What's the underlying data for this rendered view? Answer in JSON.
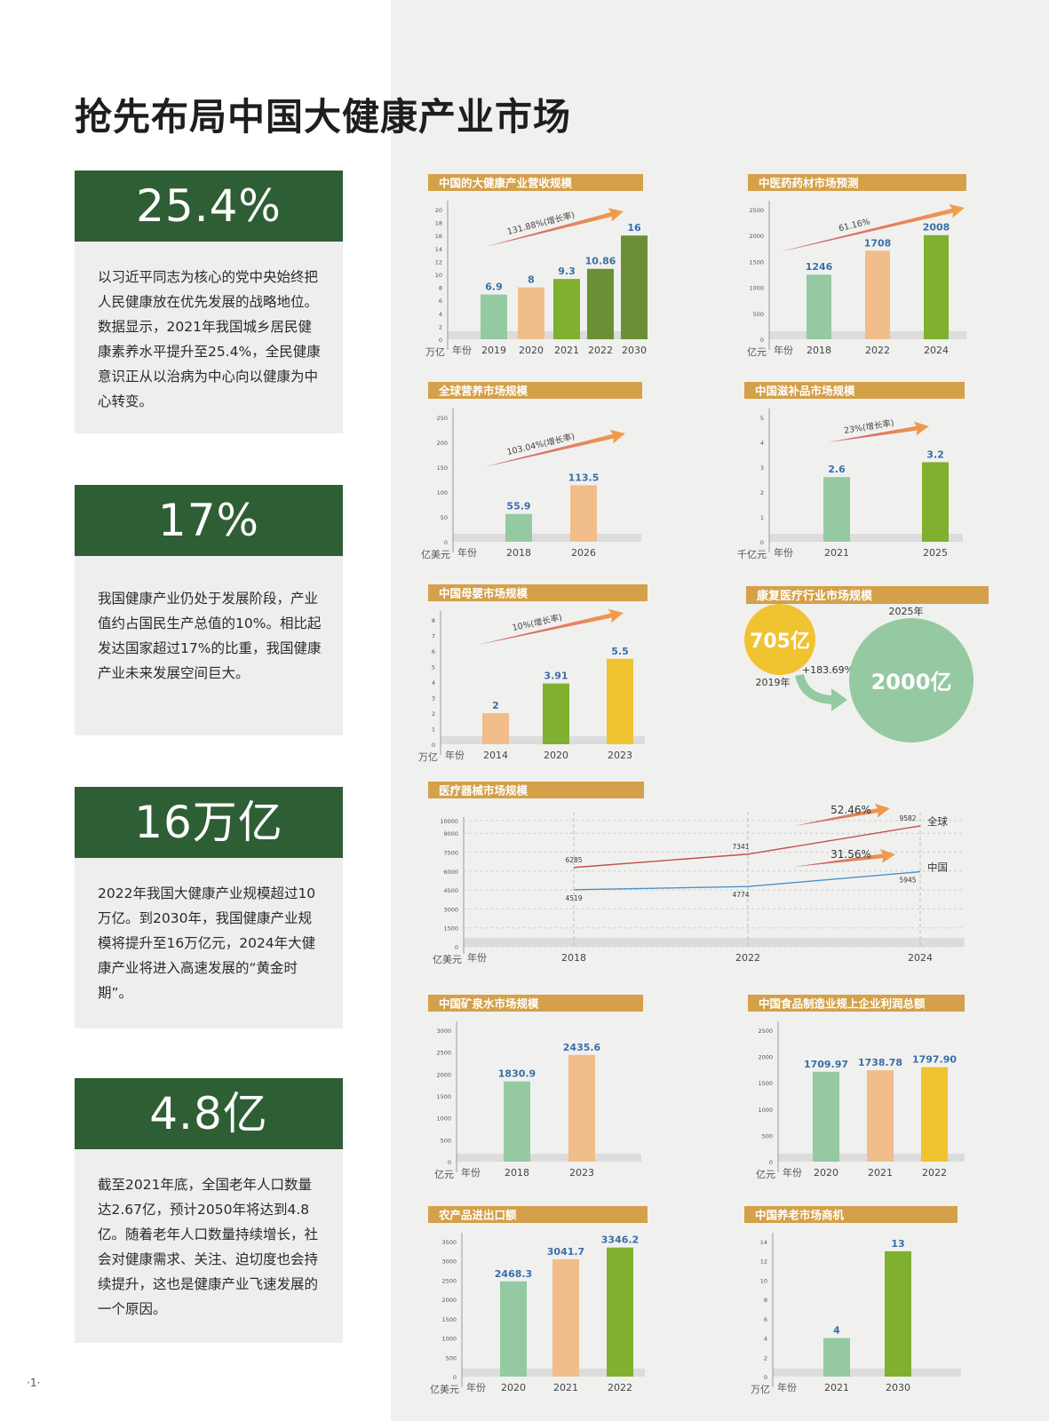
{
  "page_title": "抢先布局中国大健康产业市场",
  "page_number": "·1·",
  "stats": [
    {
      "value": "25.4%",
      "text": "以习近平同志为核心的党中央始终把人民健康放在优先发展的战略地位。数据显示，2021年我国城乡居民健康素养水平提升至25.4%，全民健康意识正从以治病为中心向以健康为中心转变。"
    },
    {
      "value": "17%",
      "text": "我国健康产业仍处于发展阶段，产业值约占国民生产总值的10%。相比起发达国家超过17%的比重，我国健康产业未来发展空间巨大。"
    },
    {
      "value": "16万亿",
      "text": "2022年我国大健康产业规模超过10万亿。到2030年，我国健康产业规模将提升至16万亿元，2024年大健康产业将进入高速发展的“黄金时期”。"
    },
    {
      "value": "4.8亿",
      "text": "截至2021年底，全国老年人口数量达2.67亿，预计2050年将达到4.8亿。随着老年人口数量持续增长，社会对健康需求、关注、迫切度也会持续提升，这也是健康产业飞速发展的一个原因。"
    }
  ],
  "colors": {
    "green_dark": "#2e5e34",
    "title_bar": "#d4a04a",
    "mint": "#95c9a2",
    "peach": "#f1bd8a",
    "lime": "#7fb02f",
    "olive": "#6b8f34",
    "yellow": "#f0c330",
    "value_label": "#3b6ea8",
    "global_line": "#c0504d",
    "china_line": "#4a90c8"
  },
  "chart_data": [
    {
      "id": "health-revenue",
      "type": "bar",
      "title": "中国的大健康产业营收规模",
      "unit": "万亿",
      "xlabel": "年份",
      "categories": [
        "2019",
        "2020",
        "2021",
        "2022",
        "2030"
      ],
      "values": [
        6.9,
        8,
        9.3,
        10.86,
        16
      ],
      "value_labels": [
        "6.9",
        "8",
        "9.3",
        "10.86",
        "16"
      ],
      "ylim": [
        0,
        20
      ],
      "yticks": [
        0,
        2,
        4,
        6,
        8,
        10,
        12,
        14,
        16,
        18,
        20
      ],
      "bar_colors": [
        "#95c9a2",
        "#f1bd8a",
        "#7fb02f",
        "#6b8f34",
        "#6b8f34"
      ],
      "growth_label": "131.88%(增长率)"
    },
    {
      "id": "tcm-materials",
      "type": "bar",
      "title": "中医药药材市场预测",
      "unit": "亿元",
      "xlabel": "年份",
      "categories": [
        "2018",
        "2022",
        "2024"
      ],
      "values": [
        1246,
        1708,
        2008
      ],
      "value_labels": [
        "1246",
        "1708",
        "2008"
      ],
      "ylim": [
        0,
        2500
      ],
      "yticks": [
        0,
        500,
        1000,
        1500,
        2000,
        2500
      ],
      "bar_colors": [
        "#95c9a2",
        "#f1bd8a",
        "#7fb02f"
      ],
      "growth_label": "61.16%"
    },
    {
      "id": "global-nutrition",
      "type": "bar",
      "title": "全球营养市场规模",
      "unit": "亿美元",
      "xlabel": "年份",
      "categories": [
        "2018",
        "2026"
      ],
      "values": [
        55.9,
        113.5
      ],
      "value_labels": [
        "55.9",
        "113.5"
      ],
      "ylim": [
        0,
        250
      ],
      "yticks": [
        0,
        50,
        100,
        150,
        200,
        250
      ],
      "bar_colors": [
        "#95c9a2",
        "#f1bd8a"
      ],
      "growth_label": "103.04%(增长率)"
    },
    {
      "id": "tonic-market",
      "type": "bar",
      "title": "中国滋补品市场规模",
      "unit": "千亿元",
      "xlabel": "年份",
      "categories": [
        "2021",
        "2025"
      ],
      "values": [
        2.6,
        3.2
      ],
      "value_labels": [
        "2.6",
        "3.2"
      ],
      "ylim": [
        0,
        5
      ],
      "yticks": [
        0,
        1,
        2,
        3,
        4,
        5
      ],
      "bar_colors": [
        "#95c9a2",
        "#7fb02f"
      ],
      "growth_label": "23%(增长率)"
    },
    {
      "id": "maternal-infant",
      "type": "bar",
      "title": "中国母婴市场规模",
      "unit": "万亿",
      "xlabel": "年份",
      "categories": [
        "2014",
        "2020",
        "2023"
      ],
      "values": [
        2,
        3.91,
        5.5
      ],
      "value_labels": [
        "2",
        "3.91",
        "5.5"
      ],
      "ylim": [
        0,
        8
      ],
      "yticks": [
        0,
        1,
        2,
        3,
        4,
        5,
        6,
        7,
        8
      ],
      "bar_colors": [
        "#f1bd8a",
        "#7fb02f",
        "#f0c330"
      ],
      "growth_label": "10%(增长率)"
    },
    {
      "id": "rehab-medical",
      "type": "bubble",
      "title": "康复医疗行业市场规模",
      "from": {
        "year": "2019年",
        "value": "705亿"
      },
      "to": {
        "year": "2025年",
        "value": "2000亿"
      },
      "growth_label": "+183.69%"
    },
    {
      "id": "medical-devices",
      "type": "line",
      "title": "医疗器械市场规模",
      "unit": "亿美元",
      "xlabel": "年份",
      "x": [
        "2018",
        "2022",
        "2024"
      ],
      "ylim": [
        0,
        10000
      ],
      "yticks": [
        0,
        1500,
        3000,
        4500,
        6000,
        7500,
        9000,
        10000
      ],
      "series": [
        {
          "name": "全球",
          "values": [
            6285,
            7341,
            9582
          ],
          "color": "#c0504d",
          "growth_label": "52.46%"
        },
        {
          "name": "中国",
          "values": [
            4519,
            4774,
            5945
          ],
          "color": "#4a90c8",
          "growth_label": "31.56%"
        }
      ]
    },
    {
      "id": "mineral-water",
      "type": "bar",
      "title": "中国矿泉水市场规模",
      "unit": "亿元",
      "xlabel": "年份",
      "categories": [
        "2018",
        "2023"
      ],
      "values": [
        1830.9,
        2435.6
      ],
      "value_labels": [
        "1830.9",
        "2435.6"
      ],
      "ylim": [
        0,
        3000
      ],
      "yticks": [
        0,
        500,
        1000,
        1500,
        2000,
        2500,
        3000
      ],
      "bar_colors": [
        "#95c9a2",
        "#f1bd8a"
      ]
    },
    {
      "id": "food-profit",
      "type": "bar",
      "title": "中国食品制造业规上企业利润总额",
      "unit": "亿元",
      "xlabel": "年份",
      "categories": [
        "2020",
        "2021",
        "2022"
      ],
      "values": [
        1709.97,
        1738.78,
        1797.9
      ],
      "value_labels": [
        "1709.97",
        "1738.78",
        "1797.90"
      ],
      "ylim": [
        0,
        2500
      ],
      "yticks": [
        0,
        500,
        1000,
        1500,
        2000,
        2500
      ],
      "bar_colors": [
        "#95c9a2",
        "#f1bd8a",
        "#f0c330"
      ]
    },
    {
      "id": "agri-trade",
      "type": "bar",
      "title": "农产品进出口额",
      "unit": "亿美元",
      "xlabel": "年份",
      "categories": [
        "2020",
        "2021",
        "2022"
      ],
      "values": [
        2468.3,
        3041.7,
        3346.2
      ],
      "value_labels": [
        "2468.3",
        "3041.7",
        "3346.2"
      ],
      "ylim": [
        0,
        3500
      ],
      "yticks": [
        0,
        500,
        1000,
        1500,
        2000,
        2500,
        3000,
        3500
      ],
      "bar_colors": [
        "#95c9a2",
        "#f1bd8a",
        "#7fb02f"
      ]
    },
    {
      "id": "elderly-care",
      "type": "bar",
      "title": "中国养老市场商机",
      "unit": "万亿",
      "xlabel": "年份",
      "categories": [
        "2021",
        "2030"
      ],
      "values": [
        4,
        13
      ],
      "value_labels": [
        "4",
        "13"
      ],
      "ylim": [
        0,
        14
      ],
      "yticks": [
        0,
        2,
        4,
        6,
        8,
        10,
        12,
        14
      ],
      "bar_colors": [
        "#95c9a2",
        "#7fb02f"
      ]
    }
  ]
}
